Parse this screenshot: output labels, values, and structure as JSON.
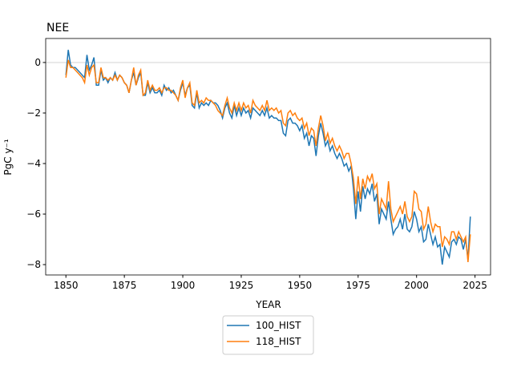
{
  "chart_data": {
    "type": "line",
    "title": "NEE",
    "xlabel": "YEAR",
    "ylabel": "PgC y⁻¹",
    "x": [
      1850,
      1851,
      1852,
      1853,
      1854,
      1855,
      1856,
      1857,
      1858,
      1859,
      1860,
      1861,
      1862,
      1863,
      1864,
      1865,
      1866,
      1867,
      1868,
      1869,
      1870,
      1871,
      1872,
      1873,
      1874,
      1875,
      1876,
      1877,
      1878,
      1879,
      1880,
      1881,
      1882,
      1883,
      1884,
      1885,
      1886,
      1887,
      1888,
      1889,
      1890,
      1891,
      1892,
      1893,
      1894,
      1895,
      1896,
      1897,
      1898,
      1899,
      1900,
      1901,
      1902,
      1903,
      1904,
      1905,
      1906,
      1907,
      1908,
      1909,
      1910,
      1911,
      1912,
      1913,
      1914,
      1915,
      1916,
      1917,
      1918,
      1919,
      1920,
      1921,
      1922,
      1923,
      1924,
      1925,
      1926,
      1927,
      1928,
      1929,
      1930,
      1931,
      1932,
      1933,
      1934,
      1935,
      1936,
      1937,
      1938,
      1939,
      1940,
      1941,
      1942,
      1943,
      1944,
      1945,
      1946,
      1947,
      1948,
      1949,
      1950,
      1951,
      1952,
      1953,
      1954,
      1955,
      1956,
      1957,
      1958,
      1959,
      1960,
      1961,
      1962,
      1963,
      1964,
      1965,
      1966,
      1967,
      1968,
      1969,
      1970,
      1971,
      1972,
      1973,
      1974,
      1975,
      1976,
      1977,
      1978,
      1979,
      1980,
      1981,
      1982,
      1983,
      1984,
      1985,
      1986,
      1987,
      1988,
      1989,
      1990,
      1991,
      1992,
      1993,
      1994,
      1995,
      1996,
      1997,
      1998,
      1999,
      2000,
      2001,
      2002,
      2003,
      2004,
      2005,
      2006,
      2007,
      2008,
      2009,
      2010,
      2011,
      2012,
      2013,
      2014,
      2015,
      2016,
      2017,
      2018,
      2019,
      2020,
      2021,
      2022,
      2023
    ],
    "series": [
      {
        "name": "100_HIST",
        "color": "#1f77b4",
        "values": [
          -0.5,
          0.5,
          -0.1,
          -0.2,
          -0.2,
          -0.3,
          -0.4,
          -0.5,
          -0.6,
          0.3,
          -0.3,
          -0.1,
          0.2,
          -0.9,
          -0.9,
          -0.3,
          -0.7,
          -0.6,
          -0.8,
          -0.6,
          -0.7,
          -0.4,
          -0.7,
          -0.5,
          -0.6,
          -0.8,
          -0.9,
          -1.2,
          -0.7,
          -0.4,
          -0.9,
          -0.6,
          -0.4,
          -1.3,
          -1.3,
          -0.8,
          -1.2,
          -1.0,
          -1.2,
          -1.2,
          -1.1,
          -1.3,
          -0.9,
          -1.1,
          -1.0,
          -1.2,
          -1.1,
          -1.3,
          -1.5,
          -1.1,
          -0.8,
          -1.3,
          -1.0,
          -0.9,
          -1.7,
          -1.8,
          -1.2,
          -1.8,
          -1.6,
          -1.7,
          -1.6,
          -1.7,
          -1.5,
          -1.6,
          -1.6,
          -1.7,
          -1.9,
          -2.2,
          -1.8,
          -1.6,
          -2.0,
          -2.2,
          -1.7,
          -2.1,
          -1.8,
          -2.1,
          -1.8,
          -2.0,
          -1.9,
          -2.2,
          -1.8,
          -1.9,
          -2.0,
          -2.1,
          -1.9,
          -2.1,
          -1.8,
          -2.2,
          -2.1,
          -2.2,
          -2.2,
          -2.3,
          -2.3,
          -2.8,
          -2.9,
          -2.3,
          -2.2,
          -2.4,
          -2.4,
          -2.5,
          -2.7,
          -2.5,
          -3.0,
          -2.8,
          -3.3,
          -2.9,
          -3.0,
          -3.7,
          -2.9,
          -2.4,
          -2.8,
          -3.3,
          -3.1,
          -3.5,
          -3.3,
          -3.6,
          -3.8,
          -3.6,
          -3.8,
          -4.1,
          -4.0,
          -4.3,
          -4.1,
          -5.0,
          -6.2,
          -5.1,
          -5.9,
          -4.9,
          -5.4,
          -5.0,
          -5.2,
          -4.8,
          -5.5,
          -5.2,
          -6.4,
          -5.8,
          -6.0,
          -6.2,
          -5.5,
          -6.2,
          -6.8,
          -6.6,
          -6.5,
          -6.2,
          -6.6,
          -6.0,
          -6.6,
          -6.7,
          -6.5,
          -5.9,
          -6.2,
          -6.7,
          -6.5,
          -7.1,
          -7.0,
          -6.4,
          -6.8,
          -7.2,
          -6.9,
          -7.3,
          -7.2,
          -8.0,
          -7.3,
          -7.5,
          -7.7,
          -7.1,
          -7.0,
          -7.2,
          -6.9,
          -7.0,
          -7.4,
          -7.0,
          -7.8,
          -6.1
        ]
      },
      {
        "name": "118_HIST",
        "color": "#ff7f0e",
        "values": [
          -0.6,
          0.1,
          -0.2,
          -0.2,
          -0.3,
          -0.4,
          -0.5,
          -0.6,
          -0.8,
          -0.1,
          -0.5,
          -0.2,
          -0.1,
          -0.8,
          -0.8,
          -0.2,
          -0.6,
          -0.6,
          -0.7,
          -0.6,
          -0.7,
          -0.5,
          -0.7,
          -0.5,
          -0.6,
          -0.8,
          -0.9,
          -1.2,
          -0.7,
          -0.2,
          -0.9,
          -0.5,
          -0.3,
          -1.3,
          -1.2,
          -0.7,
          -1.1,
          -0.9,
          -1.1,
          -1.1,
          -1.0,
          -1.2,
          -1.0,
          -1.0,
          -1.1,
          -1.1,
          -1.2,
          -1.3,
          -1.5,
          -1.0,
          -0.7,
          -1.4,
          -1.0,
          -0.8,
          -1.6,
          -1.7,
          -1.1,
          -1.6,
          -1.5,
          -1.6,
          -1.4,
          -1.5,
          -1.5,
          -1.6,
          -1.7,
          -1.9,
          -2.0,
          -2.1,
          -1.7,
          -1.4,
          -1.8,
          -2.0,
          -1.6,
          -1.9,
          -1.6,
          -1.9,
          -1.6,
          -1.8,
          -1.7,
          -2.0,
          -1.5,
          -1.7,
          -1.8,
          -1.9,
          -1.7,
          -1.9,
          -1.5,
          -1.9,
          -1.8,
          -1.9,
          -1.8,
          -2.0,
          -1.9,
          -2.4,
          -2.5,
          -2.0,
          -1.9,
          -2.1,
          -2.0,
          -2.2,
          -2.3,
          -2.2,
          -2.6,
          -2.4,
          -2.9,
          -2.6,
          -2.7,
          -3.3,
          -2.6,
          -2.1,
          -2.5,
          -3.1,
          -2.8,
          -3.2,
          -3.0,
          -3.3,
          -3.5,
          -3.3,
          -3.5,
          -3.8,
          -3.6,
          -3.6,
          -4.0,
          -4.6,
          -5.6,
          -4.5,
          -5.4,
          -4.6,
          -5.0,
          -4.5,
          -4.7,
          -4.4,
          -5.0,
          -4.8,
          -6.0,
          -5.4,
          -5.6,
          -5.8,
          -4.7,
          -5.8,
          -6.3,
          -6.1,
          -5.9,
          -5.7,
          -6.0,
          -5.5,
          -6.1,
          -6.3,
          -6.1,
          -5.1,
          -5.2,
          -5.8,
          -5.9,
          -6.6,
          -6.4,
          -5.7,
          -6.3,
          -6.7,
          -6.4,
          -6.5,
          -6.5,
          -7.3,
          -6.9,
          -7.0,
          -7.2,
          -6.7,
          -6.7,
          -7.0,
          -6.7,
          -6.9,
          -7.1,
          -6.9,
          -7.9,
          -6.8
        ]
      }
    ],
    "xlim": [
      1841.35,
      2031.65
    ],
    "xticks": [
      1850,
      1875,
      1900,
      1925,
      1950,
      1975,
      2000,
      2025
    ],
    "ylim": [
      -8.41,
      0.95
    ],
    "yticks": [
      {
        "value": -8,
        "label": "−8"
      },
      {
        "value": -6,
        "label": "−6"
      },
      {
        "value": -4,
        "label": "−4"
      },
      {
        "value": -2,
        "label": "−2"
      },
      0
    ],
    "reference_line": 0,
    "legend": "below"
  }
}
